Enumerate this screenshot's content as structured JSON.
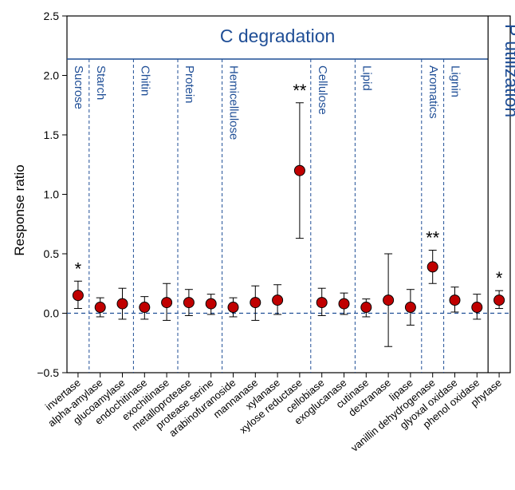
{
  "chart_data": {
    "type": "scatter",
    "title": "",
    "xlabel": "",
    "ylabel": "Response ratio",
    "ylim": [
      -0.5,
      2.5
    ],
    "yticks": [
      "-0.5",
      "0.0",
      "0.5",
      "1.0",
      "1.5",
      "2.0",
      "2.5"
    ],
    "categories": [
      "invertase",
      "alpha-amylase",
      "glucoamylase",
      "endochitinase",
      "exochitinase",
      "metalloprotease",
      "protease serine",
      "arabinofuranoside",
      "mannanase",
      "xylanase",
      "xylose reductase",
      "cellobiase",
      "exoglucanase",
      "cutinase",
      "dextranase",
      "lipase",
      "vanillin dehydrogenase",
      "glyoxal oxidase",
      "phenol oxidase",
      "phytase"
    ],
    "values": [
      0.15,
      0.05,
      0.08,
      0.05,
      0.09,
      0.09,
      0.08,
      0.05,
      0.09,
      0.11,
      1.2,
      0.09,
      0.08,
      0.05,
      0.11,
      0.05,
      0.39,
      0.11,
      0.05,
      0.11
    ],
    "err_low": [
      0.04,
      -0.03,
      -0.05,
      -0.05,
      -0.06,
      -0.02,
      -0.01,
      -0.03,
      -0.06,
      -0.01,
      0.63,
      -0.02,
      -0.01,
      -0.03,
      -0.28,
      -0.1,
      0.25,
      0.01,
      -0.05,
      0.04
    ],
    "err_high": [
      0.27,
      0.13,
      0.21,
      0.14,
      0.25,
      0.2,
      0.16,
      0.13,
      0.23,
      0.24,
      1.77,
      0.21,
      0.17,
      0.12,
      0.5,
      0.2,
      0.53,
      0.22,
      0.16,
      0.19
    ],
    "significance": [
      "*",
      "",
      "",
      "",
      "",
      "",
      "",
      "",
      "",
      "",
      "**",
      "",
      "",
      "",
      "",
      "",
      "**",
      "",
      "",
      "*"
    ],
    "reference_line": 0.0,
    "sections": [
      {
        "label": "C degradation",
        "from": 0,
        "to": 18
      },
      {
        "label": "P utilization",
        "from": 19,
        "to": 19
      }
    ],
    "groups": [
      {
        "label": "Sucrose",
        "from": 0,
        "to": 0
      },
      {
        "label": "Starch",
        "from": 1,
        "to": 2
      },
      {
        "label": "Chitin",
        "from": 3,
        "to": 4
      },
      {
        "label": "Protein",
        "from": 5,
        "to": 6
      },
      {
        "label": "Hemicellulose",
        "from": 7,
        "to": 10
      },
      {
        "label": "Cellulose",
        "from": 11,
        "to": 12
      },
      {
        "label": "Lipid",
        "from": 13,
        "to": 15
      },
      {
        "label": "Aromatics",
        "from": 16,
        "to": 16
      },
      {
        "label": "Lignin",
        "from": 17,
        "to": 18
      }
    ],
    "colors": {
      "marker": "#c00000",
      "divider": "#1f4e96",
      "text_accent": "#1f4e96"
    }
  }
}
